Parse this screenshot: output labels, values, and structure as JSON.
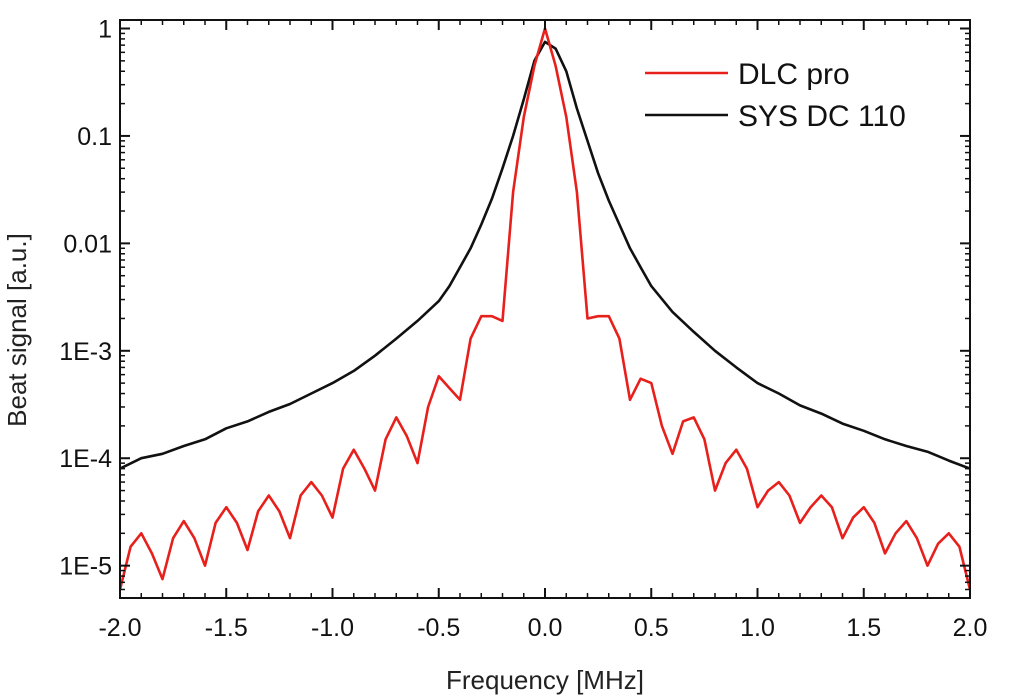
{
  "chart_data": {
    "type": "line",
    "xlabel": "Frequency [MHz]",
    "ylabel": "Beat signal [a.u.]",
    "xlim": [
      -2.0,
      2.0
    ],
    "ylim": [
      5e-06,
      1.2
    ],
    "yscale": "log",
    "x_ticks": [
      -2.0,
      -1.5,
      -1.0,
      -0.5,
      0.0,
      0.5,
      1.0,
      1.5,
      2.0
    ],
    "x_tick_labels": [
      "-2.0",
      "-1.5",
      "-1.0",
      "-0.5",
      "0.0",
      "0.5",
      "1.0",
      "1.5",
      "2.0"
    ],
    "y_ticks": [
      1e-05,
      0.0001,
      0.001,
      0.01,
      0.1,
      1
    ],
    "y_tick_labels": [
      "1E-5",
      "1E-4",
      "1E-3",
      "0.01",
      "0.1",
      "1"
    ],
    "grid": false,
    "legend_position": "top-right",
    "series": [
      {
        "name": "DLC pro",
        "color": "#e8201c",
        "x": [
          -2.0,
          -1.95,
          -1.9,
          -1.85,
          -1.8,
          -1.75,
          -1.7,
          -1.65,
          -1.6,
          -1.55,
          -1.5,
          -1.45,
          -1.4,
          -1.35,
          -1.3,
          -1.25,
          -1.2,
          -1.15,
          -1.1,
          -1.05,
          -1.0,
          -0.95,
          -0.9,
          -0.85,
          -0.8,
          -0.75,
          -0.7,
          -0.65,
          -0.6,
          -0.55,
          -0.5,
          -0.45,
          -0.4,
          -0.35,
          -0.3,
          -0.25,
          -0.2,
          -0.15,
          -0.1,
          -0.05,
          0.0,
          0.05,
          0.1,
          0.15,
          0.2,
          0.25,
          0.3,
          0.35,
          0.4,
          0.45,
          0.5,
          0.55,
          0.6,
          0.65,
          0.7,
          0.75,
          0.8,
          0.85,
          0.9,
          0.95,
          1.0,
          1.05,
          1.1,
          1.15,
          1.2,
          1.25,
          1.3,
          1.35,
          1.4,
          1.45,
          1.5,
          1.55,
          1.6,
          1.65,
          1.7,
          1.75,
          1.8,
          1.85,
          1.9,
          1.95,
          2.0
        ],
        "y": [
          6e-06,
          1.5e-05,
          2e-05,
          1.3e-05,
          7.5e-06,
          1.8e-05,
          2.6e-05,
          1.8e-05,
          1e-05,
          2.5e-05,
          3.5e-05,
          2.5e-05,
          1.4e-05,
          3.2e-05,
          4.5e-05,
          3.2e-05,
          1.8e-05,
          4.5e-05,
          6e-05,
          4.5e-05,
          2.8e-05,
          8e-05,
          0.00012,
          8e-05,
          5e-05,
          0.00015,
          0.00024,
          0.00016,
          9e-05,
          0.0003,
          0.00058,
          0.00045,
          0.00035,
          0.0013,
          0.0021,
          0.0021,
          0.0019,
          0.03,
          0.15,
          0.45,
          1.0,
          0.45,
          0.15,
          0.03,
          0.002,
          0.0021,
          0.0021,
          0.0013,
          0.00035,
          0.00055,
          0.0005,
          0.0002,
          0.00011,
          0.00022,
          0.00024,
          0.00015,
          5e-05,
          9e-05,
          0.00012,
          8e-05,
          3.5e-05,
          5e-05,
          6e-05,
          4.5e-05,
          2.5e-05,
          3.5e-05,
          4.5e-05,
          3.5e-05,
          1.8e-05,
          2.8e-05,
          3.5e-05,
          2.5e-05,
          1.3e-05,
          2e-05,
          2.6e-05,
          1.8e-05,
          1e-05,
          1.6e-05,
          2e-05,
          1.5e-05,
          6e-06
        ]
      },
      {
        "name": "SYS DC 110",
        "color": "#111111",
        "x": [
          -2.0,
          -1.9,
          -1.8,
          -1.7,
          -1.6,
          -1.5,
          -1.4,
          -1.3,
          -1.2,
          -1.1,
          -1.0,
          -0.9,
          -0.8,
          -0.7,
          -0.6,
          -0.5,
          -0.45,
          -0.4,
          -0.35,
          -0.3,
          -0.25,
          -0.2,
          -0.15,
          -0.1,
          -0.05,
          0.0,
          0.05,
          0.1,
          0.15,
          0.2,
          0.25,
          0.3,
          0.35,
          0.4,
          0.45,
          0.5,
          0.6,
          0.7,
          0.8,
          0.9,
          1.0,
          1.1,
          1.2,
          1.3,
          1.4,
          1.5,
          1.6,
          1.7,
          1.8,
          1.9,
          2.0
        ],
        "y": [
          8e-05,
          0.0001,
          0.00011,
          0.00013,
          0.00015,
          0.00019,
          0.00022,
          0.00027,
          0.00032,
          0.0004,
          0.0005,
          0.00065,
          0.0009,
          0.0013,
          0.0019,
          0.0029,
          0.004,
          0.006,
          0.009,
          0.015,
          0.026,
          0.05,
          0.1,
          0.22,
          0.5,
          0.75,
          0.65,
          0.4,
          0.18,
          0.09,
          0.045,
          0.025,
          0.015,
          0.009,
          0.006,
          0.004,
          0.0023,
          0.0015,
          0.001,
          0.0007,
          0.0005,
          0.0004,
          0.00031,
          0.00026,
          0.00021,
          0.00018,
          0.00015,
          0.00013,
          0.000115,
          9.5e-05,
          8e-05
        ]
      }
    ]
  }
}
